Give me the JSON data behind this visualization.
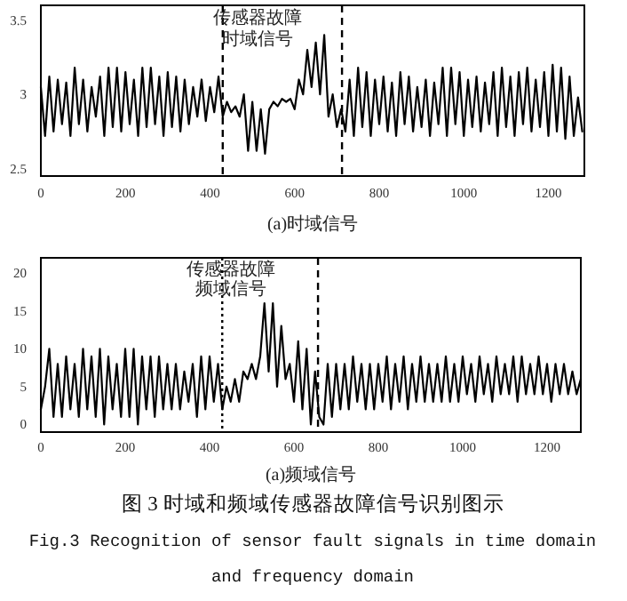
{
  "chart_data": [
    {
      "type": "line",
      "xlabel": "(a)时域信号",
      "xlim": [
        0,
        1285
      ],
      "xticks": [
        0,
        200,
        400,
        600,
        800,
        1000,
        1200
      ],
      "ylim": [
        2.45,
        3.6
      ],
      "yticks": [
        2.5,
        3,
        3.5
      ],
      "series": [
        {
          "color": "#000000",
          "x": [
            0,
            10,
            20,
            30,
            40,
            50,
            60,
            70,
            80,
            90,
            100,
            110,
            120,
            130,
            140,
            150,
            160,
            170,
            180,
            190,
            200,
            210,
            220,
            230,
            240,
            250,
            260,
            270,
            280,
            290,
            300,
            310,
            320,
            330,
            340,
            350,
            360,
            370,
            380,
            390,
            400,
            410,
            420,
            430,
            440,
            450,
            460,
            470,
            480,
            490,
            500,
            510,
            520,
            530,
            540,
            550,
            560,
            570,
            580,
            590,
            600,
            610,
            620,
            630,
            640,
            650,
            660,
            670,
            680,
            690,
            700,
            710,
            720,
            730,
            740,
            750,
            760,
            770,
            780,
            790,
            800,
            810,
            820,
            830,
            840,
            850,
            860,
            870,
            880,
            890,
            900,
            910,
            920,
            930,
            940,
            950,
            960,
            970,
            980,
            990,
            1000,
            1010,
            1020,
            1030,
            1040,
            1050,
            1060,
            1070,
            1080,
            1090,
            1100,
            1110,
            1120,
            1130,
            1140,
            1150,
            1160,
            1170,
            1180,
            1190,
            1200,
            1210,
            1220,
            1230,
            1240,
            1250,
            1260,
            1270,
            1280
          ],
          "values": [
            3.05,
            2.72,
            3.12,
            2.75,
            3.1,
            2.8,
            3.08,
            2.72,
            3.18,
            2.8,
            3.1,
            2.75,
            3.05,
            2.85,
            3.12,
            2.72,
            3.18,
            2.78,
            3.18,
            2.75,
            3.15,
            2.8,
            3.1,
            2.72,
            3.18,
            2.78,
            3.18,
            2.8,
            3.12,
            2.72,
            3.15,
            2.78,
            3.12,
            2.75,
            3.1,
            2.8,
            3.05,
            2.85,
            3.1,
            2.82,
            3.05,
            2.88,
            3.12,
            2.85,
            2.95,
            2.88,
            2.92,
            2.85,
            3.0,
            2.62,
            2.95,
            2.62,
            2.9,
            2.6,
            2.9,
            2.95,
            2.92,
            2.97,
            2.95,
            2.97,
            2.9,
            3.1,
            3.0,
            3.3,
            3.05,
            3.35,
            3.0,
            3.4,
            2.85,
            3.0,
            2.78,
            2.9,
            2.75,
            3.1,
            2.72,
            3.18,
            2.78,
            3.15,
            2.72,
            3.1,
            2.8,
            3.12,
            2.75,
            3.08,
            2.72,
            3.15,
            2.8,
            3.12,
            2.75,
            3.05,
            2.78,
            3.1,
            2.72,
            3.08,
            2.8,
            3.18,
            2.72,
            3.18,
            2.8,
            3.15,
            2.72,
            3.1,
            2.78,
            3.12,
            2.75,
            3.08,
            2.8,
            3.15,
            2.72,
            3.18,
            2.78,
            3.12,
            2.72,
            3.15,
            2.8,
            3.18,
            2.75,
            3.1,
            2.78,
            3.15,
            2.72,
            3.2,
            2.75,
            3.18,
            2.7,
            3.12,
            2.72,
            2.98,
            2.75
          ]
        }
      ],
      "ref_lines": [
        {
          "axis": "x",
          "value": 430,
          "line_style": "dashed"
        },
        {
          "axis": "x",
          "value": 712,
          "line_style": "dashed"
        }
      ],
      "annotations": [
        "传感器故障",
        "时域信号"
      ]
    },
    {
      "type": "line",
      "xlabel": "(a)频域信号",
      "xlim": [
        0,
        1280
      ],
      "xticks": [
        0,
        200,
        400,
        600,
        800,
        1000,
        1200
      ],
      "ylim": [
        -1,
        22
      ],
      "yticks": [
        0,
        5,
        10,
        15,
        20
      ],
      "series": [
        {
          "color": "#000000",
          "x": [
            0,
            10,
            20,
            30,
            40,
            50,
            60,
            70,
            80,
            90,
            100,
            110,
            120,
            130,
            140,
            150,
            160,
            170,
            180,
            190,
            200,
            210,
            220,
            230,
            240,
            250,
            260,
            270,
            280,
            290,
            300,
            310,
            320,
            330,
            340,
            350,
            360,
            370,
            380,
            390,
            400,
            410,
            420,
            430,
            440,
            450,
            460,
            470,
            480,
            490,
            500,
            510,
            520,
            530,
            540,
            550,
            560,
            570,
            580,
            590,
            600,
            610,
            620,
            630,
            640,
            650,
            660,
            670,
            680,
            690,
            700,
            710,
            720,
            730,
            740,
            750,
            760,
            770,
            780,
            790,
            800,
            810,
            820,
            830,
            840,
            850,
            860,
            870,
            880,
            890,
            900,
            910,
            920,
            930,
            940,
            950,
            960,
            970,
            980,
            990,
            1000,
            1010,
            1020,
            1030,
            1040,
            1050,
            1060,
            1070,
            1080,
            1090,
            1100,
            1110,
            1120,
            1130,
            1140,
            1150,
            1160,
            1170,
            1180,
            1190,
            1200,
            1210,
            1220,
            1230,
            1240,
            1250,
            1260,
            1270,
            1280
          ],
          "values": [
            2,
            5,
            10,
            1,
            8,
            1,
            9,
            2,
            8,
            1,
            10,
            2,
            9,
            1,
            10,
            0,
            9,
            2,
            8,
            1,
            10,
            1,
            10,
            0,
            9,
            2,
            9,
            1,
            9,
            2,
            8,
            2,
            8,
            2,
            7,
            3,
            8,
            1,
            9,
            2,
            9,
            3,
            8,
            2,
            5,
            3,
            6,
            3,
            7,
            6,
            8,
            6,
            9,
            16,
            7,
            16,
            5,
            13,
            6,
            8,
            3,
            11,
            2,
            10,
            0,
            7,
            1,
            0,
            8,
            1,
            8,
            2,
            8,
            2,
            9,
            3,
            8,
            2,
            8,
            2,
            8,
            3,
            9,
            2,
            8,
            3,
            9,
            2,
            8,
            3,
            9,
            3,
            8,
            3,
            8,
            3,
            9,
            3,
            8,
            3,
            9,
            4,
            8,
            3,
            9,
            4,
            8,
            3,
            9,
            4,
            8,
            4,
            9,
            3,
            9,
            4,
            8,
            4,
            9,
            4,
            8,
            3,
            8,
            4,
            8,
            4,
            7,
            4,
            6
          ]
        }
      ],
      "ref_lines": [
        {
          "axis": "x",
          "value": 430,
          "line_style": "dotted"
        },
        {
          "axis": "x",
          "value": 657,
          "line_style": "dashed"
        }
      ],
      "annotations": [
        "传感器故障",
        "频域信号",
        "图 3 时域和频域传感器故障信号识别图示",
        "Fig.3 Recognition of sensor fault signals in time domain",
        "and frequency domain"
      ]
    }
  ]
}
